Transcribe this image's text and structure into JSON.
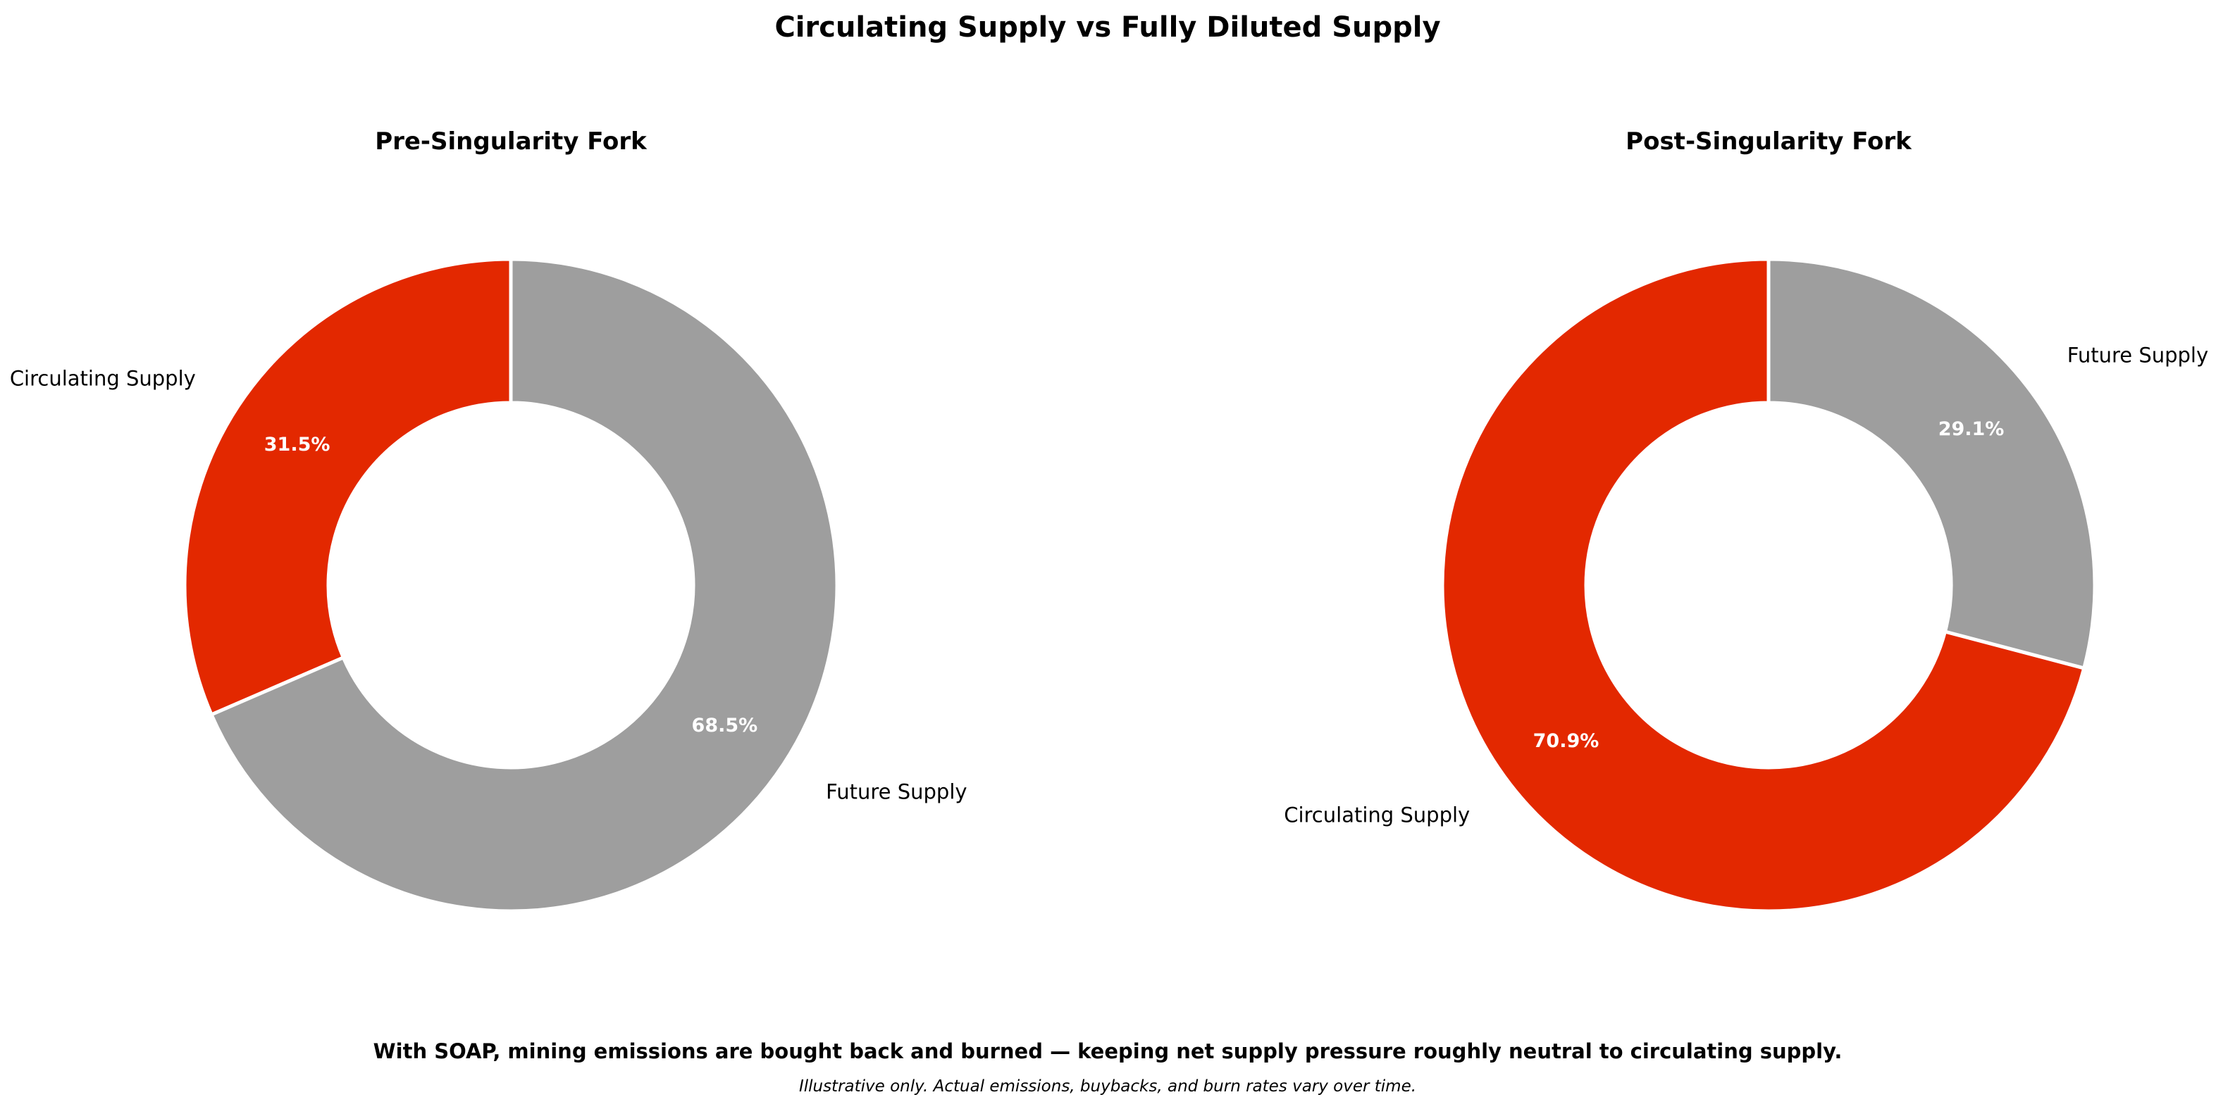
{
  "title": "Circulating Supply vs Fully Diluted Supply",
  "footnote": "With SOAP, mining emissions are bought back and burned — keeping net supply pressure roughly neutral to circulating supply.",
  "disclaimer": "Illustrative only. Actual emissions, buybacks, and burn rates vary over time.",
  "colors": {
    "circulating": "#e32800",
    "future": "#9e9e9e",
    "edge": "#ffffff"
  },
  "chart_data": [
    {
      "type": "pie",
      "variant": "donut",
      "title": "Pre-Singularity Fork",
      "categories": [
        "Circulating Supply",
        "Future Supply"
      ],
      "values": [
        31.5,
        68.5
      ],
      "value_labels": [
        "31.5%",
        "68.5%"
      ],
      "start_angle_deg": 90,
      "direction": "counterclockwise"
    },
    {
      "type": "pie",
      "variant": "donut",
      "title": "Post-Singularity Fork",
      "categories": [
        "Circulating Supply",
        "Future Supply"
      ],
      "values": [
        70.9,
        29.1
      ],
      "value_labels": [
        "70.9%",
        "29.1%"
      ],
      "start_angle_deg": 90,
      "direction": "counterclockwise"
    }
  ]
}
